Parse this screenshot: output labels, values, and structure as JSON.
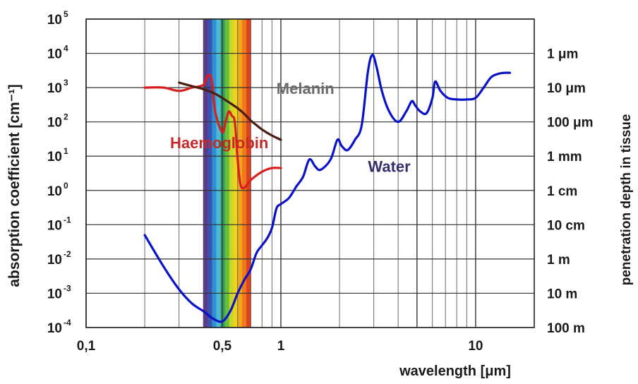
{
  "chart_data": {
    "type": "line",
    "xlabel": "wavelength [μm]",
    "ylabel": "absorption coefficient [cm⁻¹]",
    "y2label": "penetration depth in tissue",
    "x_scale": "log",
    "y_scale": "log",
    "xlim": [
      0.1,
      20
    ],
    "ylim": [
      0.0001,
      100000
    ],
    "x_ticks": [
      {
        "value": 0.1,
        "label": "0,1"
      },
      {
        "value": 0.5,
        "label": "0,5"
      },
      {
        "value": 1,
        "label": "1"
      },
      {
        "value": 10,
        "label": "10"
      }
    ],
    "y_ticks": [
      {
        "value": 100000,
        "base": "10",
        "exp": "5"
      },
      {
        "value": 10000,
        "base": "10",
        "exp": "4"
      },
      {
        "value": 1000,
        "base": "10",
        "exp": "3"
      },
      {
        "value": 100,
        "base": "10",
        "exp": "2"
      },
      {
        "value": 10,
        "base": "10",
        "exp": "1"
      },
      {
        "value": 1,
        "base": "10",
        "exp": "0"
      },
      {
        "value": 0.1,
        "base": "10",
        "exp": "-1"
      },
      {
        "value": 0.01,
        "base": "10",
        "exp": "-2"
      },
      {
        "value": 0.001,
        "base": "10",
        "exp": "-3"
      },
      {
        "value": 0.0001,
        "base": "10",
        "exp": "-4"
      }
    ],
    "y2_ticks": [
      {
        "value": 10000,
        "label": "1 μm"
      },
      {
        "value": 1000,
        "label": "10 μm"
      },
      {
        "value": 100,
        "label": "100 μm"
      },
      {
        "value": 10,
        "label": "1 mm"
      },
      {
        "value": 1,
        "label": "1 cm"
      },
      {
        "value": 0.1,
        "label": "10 cm"
      },
      {
        "value": 0.01,
        "label": "1 m"
      },
      {
        "value": 0.001,
        "label": "10 m"
      },
      {
        "value": 0.0001,
        "label": "100 m"
      }
    ],
    "grid": true,
    "visible_band": {
      "x_start": 0.4,
      "x_end": 0.7,
      "colors": [
        "#5b3a8c",
        "#3a52b0",
        "#2f8fd0",
        "#4fb8d8",
        "#2da36a",
        "#6cbd3a",
        "#c5d62c",
        "#f0d21c",
        "#f3a61c",
        "#ee7a1e",
        "#e0421c"
      ]
    },
    "series": [
      {
        "name": "Water",
        "color": "#0a12c8",
        "label_at": [
          2.8,
          3.5
        ],
        "label_color": "#33306b",
        "points": [
          [
            0.2,
            0.05
          ],
          [
            0.25,
            0.006
          ],
          [
            0.3,
            0.0013
          ],
          [
            0.35,
            0.0005
          ],
          [
            0.4,
            0.0003
          ],
          [
            0.45,
            0.00018
          ],
          [
            0.5,
            0.00015
          ],
          [
            0.55,
            0.0003
          ],
          [
            0.6,
            0.001
          ],
          [
            0.65,
            0.0025
          ],
          [
            0.7,
            0.005
          ],
          [
            0.75,
            0.015
          ],
          [
            0.8,
            0.025
          ],
          [
            0.85,
            0.04
          ],
          [
            0.9,
            0.08
          ],
          [
            0.95,
            0.3
          ],
          [
            1.0,
            0.4
          ],
          [
            1.1,
            0.6
          ],
          [
            1.2,
            1.3
          ],
          [
            1.3,
            2.5
          ],
          [
            1.4,
            8
          ],
          [
            1.5,
            5
          ],
          [
            1.6,
            4
          ],
          [
            1.8,
            8
          ],
          [
            1.95,
            30
          ],
          [
            2.05,
            20
          ],
          [
            2.2,
            15
          ],
          [
            2.4,
            30
          ],
          [
            2.6,
            80
          ],
          [
            2.8,
            3000
          ],
          [
            2.95,
            9000
          ],
          [
            3.1,
            4000
          ],
          [
            3.3,
            800
          ],
          [
            3.6,
            200
          ],
          [
            4.0,
            100
          ],
          [
            4.4,
            200
          ],
          [
            4.7,
            400
          ],
          [
            4.9,
            300
          ],
          [
            5.2,
            200
          ],
          [
            5.6,
            180
          ],
          [
            6.0,
            500
          ],
          [
            6.2,
            1500
          ],
          [
            6.6,
            800
          ],
          [
            7.2,
            500
          ],
          [
            8.0,
            450
          ],
          [
            9.0,
            450
          ],
          [
            10.0,
            500
          ],
          [
            11.0,
            1000
          ],
          [
            12.0,
            2000
          ],
          [
            13.0,
            2500
          ],
          [
            14.0,
            2700
          ],
          [
            15.0,
            2700
          ]
        ]
      },
      {
        "name": "Haemoglobin",
        "color": "#d81e1e",
        "label_at": [
          0.27,
          17
        ],
        "label_color": "#c62828",
        "points": [
          [
            0.2,
            1000
          ],
          [
            0.25,
            1000
          ],
          [
            0.3,
            800
          ],
          [
            0.35,
            1000
          ],
          [
            0.4,
            1200
          ],
          [
            0.42,
            2200
          ],
          [
            0.44,
            1800
          ],
          [
            0.46,
            200
          ],
          [
            0.5,
            50
          ],
          [
            0.52,
            100
          ],
          [
            0.54,
            200
          ],
          [
            0.56,
            150
          ],
          [
            0.58,
            100
          ],
          [
            0.6,
            8
          ],
          [
            0.62,
            1.5
          ],
          [
            0.65,
            1.2
          ],
          [
            0.7,
            2
          ],
          [
            0.8,
            3.5
          ],
          [
            0.9,
            4.5
          ],
          [
            1.0,
            4.5
          ]
        ]
      },
      {
        "name": "Melanin",
        "color": "#4a1f12",
        "label_at": [
          0.95,
          650
        ],
        "label_color": "#6b6b6b",
        "points": [
          [
            0.3,
            1400
          ],
          [
            0.35,
            1100
          ],
          [
            0.4,
            900
          ],
          [
            0.45,
            700
          ],
          [
            0.5,
            500
          ],
          [
            0.55,
            350
          ],
          [
            0.6,
            250
          ],
          [
            0.65,
            170
          ],
          [
            0.7,
            110
          ],
          [
            0.75,
            80
          ],
          [
            0.8,
            60
          ],
          [
            0.9,
            40
          ],
          [
            1.0,
            30
          ]
        ]
      }
    ]
  }
}
